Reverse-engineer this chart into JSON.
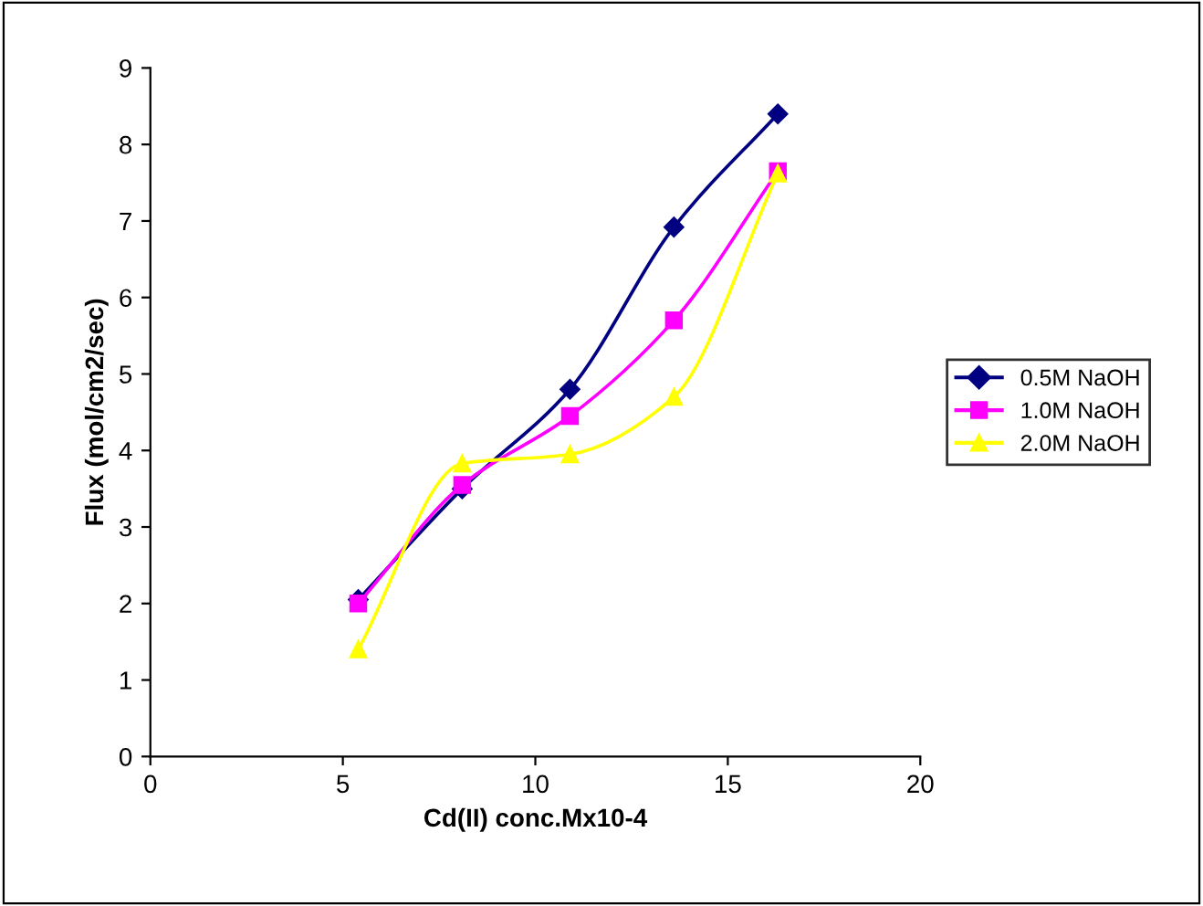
{
  "chart_data": {
    "type": "line",
    "xlabel": "Cd(II) conc.Mx10-4",
    "ylabel": "Flux (mol/cm2/sec)",
    "x": [
      5.4,
      8.1,
      10.9,
      13.6,
      16.3
    ],
    "series": [
      {
        "name": "0.5M NaOH",
        "color": "#000080",
        "marker": "diamond",
        "values": [
          2.05,
          3.5,
          4.8,
          6.92,
          8.4
        ]
      },
      {
        "name": "1.0M NaOH",
        "color": "#ff00ff",
        "marker": "square",
        "values": [
          2.0,
          3.55,
          4.45,
          5.7,
          7.65
        ]
      },
      {
        "name": "2.0M NaOH",
        "color": "#ffff00",
        "marker": "triangle",
        "values": [
          1.4,
          3.83,
          3.95,
          4.7,
          7.62
        ]
      }
    ],
    "xlim": [
      0,
      20
    ],
    "xticks": [
      0,
      5,
      10,
      15,
      20
    ],
    "ylim": [
      0,
      9
    ],
    "yticks": [
      0,
      1,
      2,
      3,
      4,
      5,
      6,
      7,
      8,
      9
    ],
    "grid": false,
    "legend": "right",
    "line_style": "solid"
  }
}
